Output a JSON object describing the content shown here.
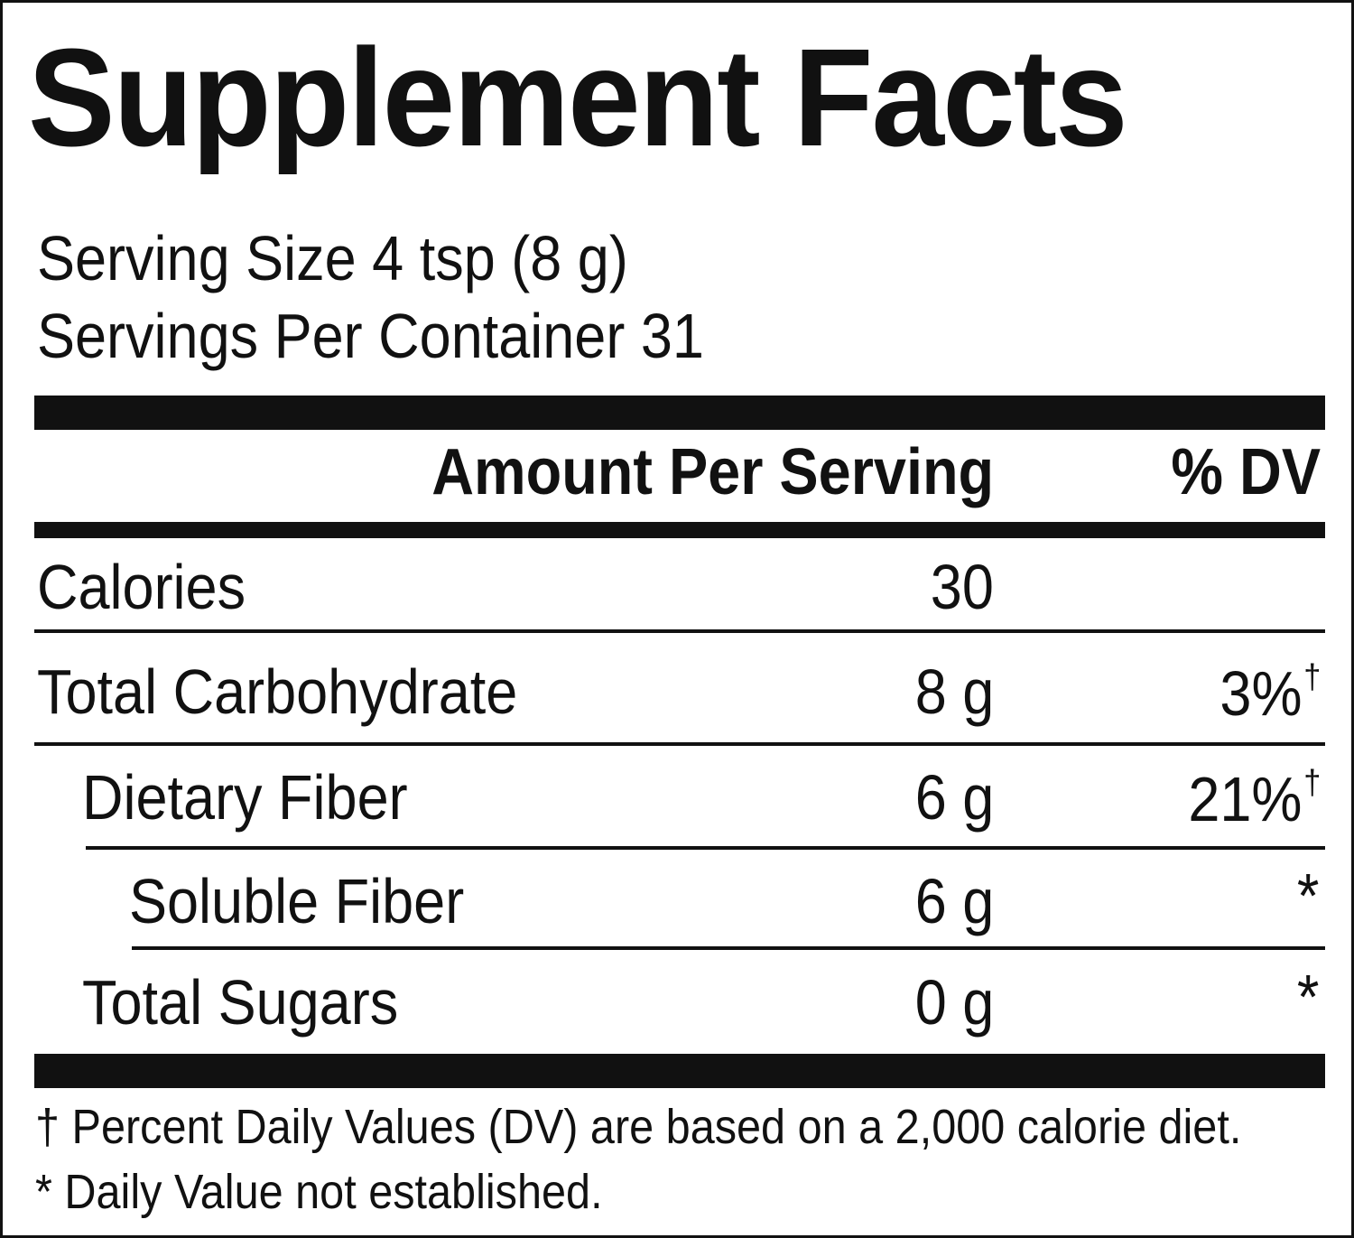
{
  "label": {
    "title": "Supplement Facts",
    "serving_size": "Serving Size 4 tsp (8 g)",
    "servings_per_container": "Servings Per Container 31",
    "header_amount": "Amount Per Serving",
    "header_dv": "% DV",
    "rows": [
      {
        "name": "Calories",
        "amount": "30",
        "dv": "",
        "dv_mark": ""
      },
      {
        "name": "Total Carbohydrate",
        "amount": "8 g",
        "dv": "3%",
        "dv_mark": "†"
      },
      {
        "name": "Dietary Fiber",
        "amount": "6 g",
        "dv": "21%",
        "dv_mark": "†"
      },
      {
        "name": "Soluble Fiber",
        "amount": "6 g",
        "dv": "*",
        "dv_mark": ""
      },
      {
        "name": "Total Sugars",
        "amount": "0 g",
        "dv": "*",
        "dv_mark": ""
      }
    ],
    "footnotes": [
      "† Percent Daily Values (DV) are based on a 2,000 calorie diet.",
      "* Daily Value not established."
    ]
  }
}
